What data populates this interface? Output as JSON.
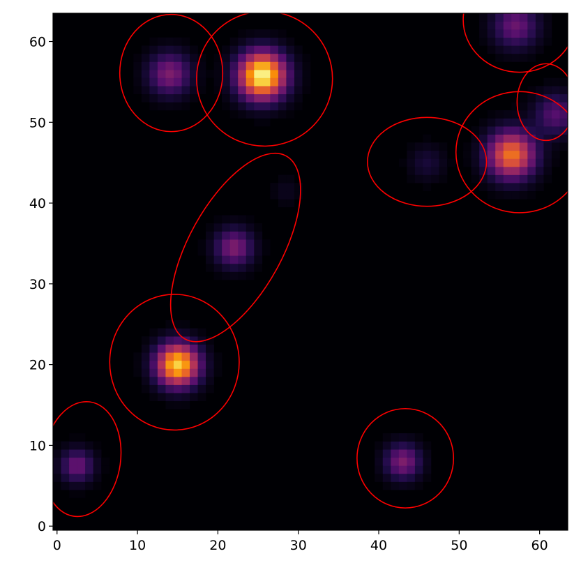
{
  "chart_data": {
    "type": "image",
    "colormap": "inferno",
    "xlim": [
      -0.5,
      63.5
    ],
    "ylim": [
      -0.5,
      63.5
    ],
    "xticks": [
      0,
      10,
      20,
      30,
      40,
      50,
      60
    ],
    "yticks": [
      0,
      10,
      20,
      30,
      40,
      50,
      60
    ],
    "sources": [
      {
        "x": 14,
        "y": 56,
        "amplitude": 0.35,
        "sigma": 1.8
      },
      {
        "x": 25.5,
        "y": 55.8,
        "amplitude": 1.0,
        "sigma": 2.0
      },
      {
        "x": 57,
        "y": 62,
        "amplitude": 0.3,
        "sigma": 1.9
      },
      {
        "x": 62,
        "y": 51,
        "amplitude": 0.25,
        "sigma": 1.8
      },
      {
        "x": 56.5,
        "y": 46,
        "amplitude": 0.7,
        "sigma": 2.0
      },
      {
        "x": 46,
        "y": 45,
        "amplitude": 0.1,
        "sigma": 1.5
      },
      {
        "x": 28.5,
        "y": 41.5,
        "amplitude": 0.05,
        "sigma": 1.2
      },
      {
        "x": 22,
        "y": 34.5,
        "amplitude": 0.35,
        "sigma": 1.6
      },
      {
        "x": 15,
        "y": 20,
        "amplitude": 0.9,
        "sigma": 1.8
      },
      {
        "x": 2.5,
        "y": 7.5,
        "amplitude": 0.3,
        "sigma": 1.4
      },
      {
        "x": 43,
        "y": 8,
        "amplitude": 0.35,
        "sigma": 1.5
      }
    ],
    "ellipse_color": "#ff0000",
    "ellipses": [
      {
        "x": 14.2,
        "y": 56.1,
        "width": 12.8,
        "height": 14.5,
        "angle": 0
      },
      {
        "x": 25.8,
        "y": 55.4,
        "width": 16.9,
        "height": 16.7,
        "angle": 0
      },
      {
        "x": 57.5,
        "y": 62.7,
        "width": 14,
        "height": 13,
        "angle": 0
      },
      {
        "x": 60.8,
        "y": 52.5,
        "width": 7.2,
        "height": 9.5,
        "angle": 0
      },
      {
        "x": 57.5,
        "y": 46.3,
        "width": 15.8,
        "height": 15,
        "angle": 0
      },
      {
        "x": 46,
        "y": 45.1,
        "width": 14.8,
        "height": 11,
        "angle": 0
      },
      {
        "x": 22.2,
        "y": 34.5,
        "width": 26,
        "height": 11.5,
        "angle": 61
      },
      {
        "x": 14.6,
        "y": 20.3,
        "width": 16.1,
        "height": 16.8,
        "angle": 0
      },
      {
        "x": 3.1,
        "y": 8.3,
        "width": 9.6,
        "height": 14.3,
        "angle": -8
      },
      {
        "x": 43.3,
        "y": 8.4,
        "width": 12,
        "height": 12.3,
        "angle": 0
      }
    ]
  }
}
